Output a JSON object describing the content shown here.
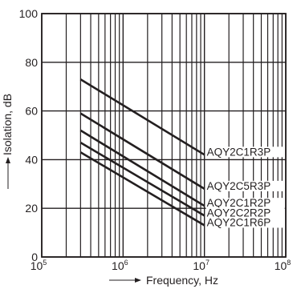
{
  "chart_data": {
    "type": "line",
    "xscale": "log",
    "xlim": [
      100000,
      100000000
    ],
    "ylim": [
      0,
      100
    ],
    "grid": true,
    "xlabel": "Frequency, Hz",
    "ylabel": "Isolation, dB",
    "x_ticks": [
      {
        "base": "10",
        "exp": "5",
        "value": 100000
      },
      {
        "base": "10",
        "exp": "6",
        "value": 1000000
      },
      {
        "base": "10",
        "exp": "7",
        "value": 10000000
      },
      {
        "base": "10",
        "exp": "8",
        "value": 100000000
      }
    ],
    "y_ticks": [
      {
        "label": "0",
        "value": 0
      },
      {
        "label": "20",
        "value": 20
      },
      {
        "label": "40",
        "value": 40
      },
      {
        "label": "60",
        "value": 60
      },
      {
        "label": "80",
        "value": 80
      },
      {
        "label": "100",
        "value": 100
      }
    ],
    "series": [
      {
        "name": "AQY2C1R3P",
        "x": [
          300000,
          10000000
        ],
        "y": [
          73,
          42
        ]
      },
      {
        "name": "AQY2C5R3P",
        "x": [
          300000,
          10000000
        ],
        "y": [
          59,
          28
        ]
      },
      {
        "name": "AQY2C1R2P",
        "x": [
          300000,
          10000000
        ],
        "y": [
          52,
          21
        ]
      },
      {
        "name": "AQY2C2R2P",
        "x": [
          300000,
          10000000
        ],
        "y": [
          47,
          17
        ]
      },
      {
        "name": "AQY2C1R6P",
        "x": [
          300000,
          10000000
        ],
        "y": [
          43,
          13
        ]
      }
    ]
  }
}
